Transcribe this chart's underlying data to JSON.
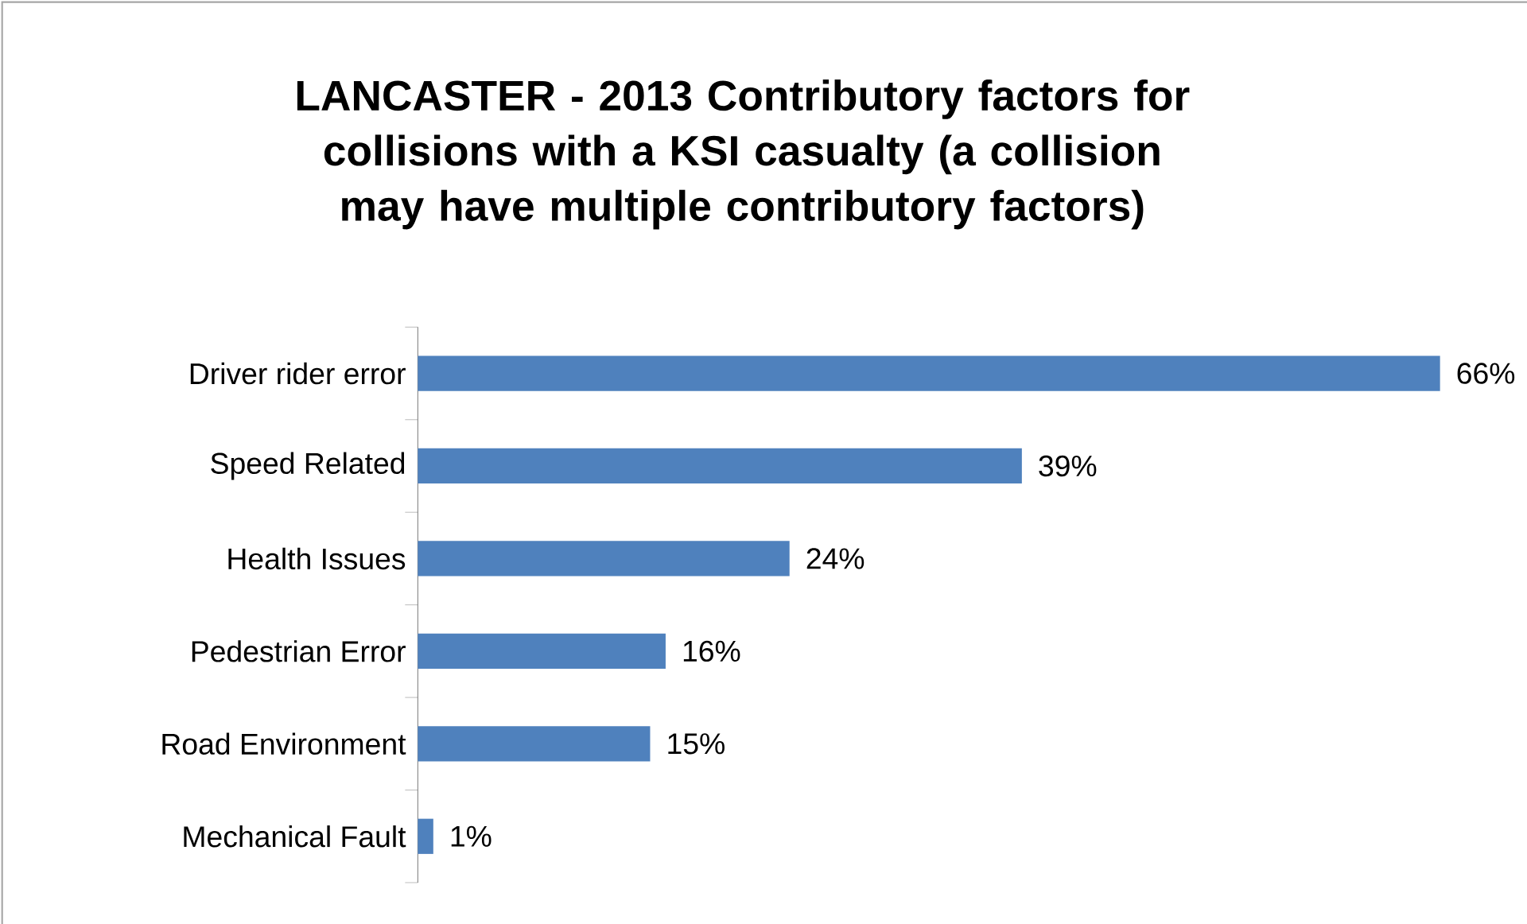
{
  "chart_data": {
    "type": "bar",
    "orientation": "horizontal",
    "title": "LANCASTER - 2013 Contributory factors for collisions with a KSI casualty (a collision may have multiple contributory factors)",
    "categories": [
      "Driver rider error",
      "Speed Related",
      "Health Issues",
      "Pedestrian Error",
      "Road Environment",
      "Mechanical Fault"
    ],
    "values": [
      66,
      39,
      24,
      16,
      15,
      1
    ],
    "value_labels": [
      "66%",
      "39%",
      "24%",
      "16%",
      "15%",
      "1%"
    ],
    "color": "#4f81bd"
  }
}
